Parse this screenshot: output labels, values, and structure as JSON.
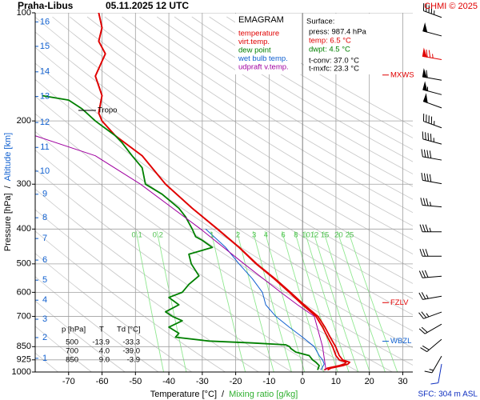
{
  "chart_data": {
    "type": "emagram",
    "title": "Praha-Libus",
    "subtitle": "05.11.2025 12 UTC",
    "credit": "CHMI © 2025",
    "xlabel": "Temperature [°C]",
    "xlabel_sep": "/",
    "xlabel2": "Mixing ratio [g/kg]",
    "ylabel": "Pressure [hPa]",
    "ylabel_sep": "/",
    "ylabel2": "Altitude [km]",
    "xlim": [
      -80,
      33
    ],
    "xticks": [
      -70,
      -60,
      -50,
      -40,
      -30,
      -20,
      -10,
      0,
      10,
      20,
      30
    ],
    "ylim": [
      1000,
      100
    ],
    "yscale": "log",
    "yticks": [
      100,
      200,
      300,
      400,
      500,
      600,
      700,
      850,
      925,
      1000
    ],
    "grid": true,
    "altitude_km": [
      1,
      2,
      3,
      4,
      5,
      6,
      7,
      8,
      9,
      10,
      11,
      12,
      13,
      14,
      15,
      16
    ],
    "altitude_pressure": [
      916,
      802,
      713,
      631,
      555,
      488,
      425,
      372,
      320,
      276,
      237,
      202,
      171,
      146,
      124,
      106
    ],
    "mixing_ratios": [
      0.1,
      0.2,
      1,
      2,
      3,
      4,
      6,
      8,
      10,
      12,
      15,
      20,
      25
    ],
    "legend_title": "EMAGRAM",
    "series": [
      {
        "name": "temperature",
        "color": "#e00000",
        "pressure": [
          987,
          975,
          960,
          950,
          940,
          925,
          900,
          850,
          800,
          750,
          700,
          650,
          600,
          550,
          500,
          450,
          400,
          350,
          300,
          250,
          220,
          200,
          190,
          170,
          150,
          130,
          120,
          110,
          100
        ],
        "values": [
          6.5,
          7.5,
          11,
          12.5,
          13,
          11,
          10,
          9,
          7.5,
          6,
          4,
          0,
          -4,
          -8.5,
          -13.9,
          -19,
          -25.5,
          -33,
          -41,
          -48,
          -56,
          -60,
          -61,
          -60,
          -62,
          -59,
          -61,
          -60,
          -61
        ]
      },
      {
        "name": "virt.temp.",
        "color": "#e00000",
        "pressure": [
          987,
          975,
          960,
          950,
          940,
          925,
          900,
          850,
          800,
          750,
          700,
          650,
          600,
          550,
          500,
          450,
          400,
          350,
          300,
          250,
          220,
          200,
          190,
          170,
          150,
          130,
          120,
          110,
          100
        ],
        "values": [
          7.5,
          8.5,
          12.1,
          13.6,
          14.1,
          12,
          11,
          9.9,
          8.3,
          6.7,
          4.6,
          0.5,
          -3.6,
          -8.2,
          -13.7,
          -18.9,
          -25.4,
          -33,
          -41,
          -48,
          -56,
          -60,
          -61,
          -60,
          -62,
          -59,
          -61,
          -60,
          -61
        ]
      },
      {
        "name": "dew point",
        "color": "#008000",
        "pressure": [
          987,
          960,
          940,
          925,
          900,
          880,
          860,
          850,
          840,
          830,
          820,
          800,
          780,
          750,
          720,
          700,
          680,
          650,
          620,
          600,
          570,
          540,
          500,
          470,
          450,
          430,
          420,
          400,
          370,
          350,
          320,
          300,
          270,
          250,
          230,
          220,
          200,
          185,
          175,
          170
        ],
        "values": [
          4.5,
          5,
          4,
          3,
          2,
          -2,
          -3.5,
          -3.9,
          -5,
          -15,
          -28,
          -38,
          -37,
          -40,
          -36,
          -39,
          -41,
          -37,
          -40,
          -36,
          -34,
          -31,
          -33.3,
          -34,
          -27,
          -30,
          -32,
          -33,
          -35,
          -37,
          -42,
          -47,
          -48,
          -51,
          -54,
          -56,
          -62,
          -66,
          -70,
          -78
        ]
      },
      {
        "name": "wet bulb temp.",
        "color": "#1060d0",
        "pressure": [
          987,
          950,
          925,
          900,
          850,
          800,
          750,
          700,
          650,
          600,
          550,
          500,
          450,
          400
        ],
        "values": [
          5.5,
          6.5,
          6,
          5,
          3.5,
          0,
          -4,
          -8,
          -11,
          -12,
          -15,
          -19,
          -23,
          -29
        ]
      },
      {
        "name": "udpraft v.temp.",
        "color": "#a000a0",
        "pressure": [
          987,
          850,
          700,
          650,
          600,
          500,
          400,
          300,
          250,
          220
        ],
        "values": [
          7,
          6,
          3.5,
          -1.5,
          -6.5,
          -17.5,
          -30.5,
          -48.5,
          -62,
          -80
        ]
      }
    ],
    "surface_title": "Surface:",
    "surface_lines": [
      {
        "text": "press: 987.4 hPa",
        "color": "#000000"
      },
      {
        "text": "temp: 6.5 °C",
        "color": "#e00000"
      },
      {
        "text": "dwpt: 4.5 °C",
        "color": "#008000"
      },
      {
        "text": "t-conv: 37.0 °C",
        "color": "#000000"
      },
      {
        "text": "t-mxfc: 23.3 °C",
        "color": "#000000"
      }
    ],
    "levels": [
      {
        "label": "MXWS",
        "pressure": 149,
        "color": "#e00000"
      },
      {
        "label": "FZLV",
        "pressure": 641,
        "color": "#e00000"
      },
      {
        "label": "WBZL",
        "pressure": 821,
        "color": "#1060d0"
      }
    ],
    "tropopause": {
      "label": "Tropo",
      "pressure": 187
    },
    "table": {
      "header": [
        "p [hPa]",
        "T",
        "Td [°C]"
      ],
      "rows": [
        [
          "500",
          "-13.9",
          "-33.3"
        ],
        [
          "700",
          "4.0",
          "-39.0"
        ],
        [
          "850",
          "9.0",
          "-3.9"
        ]
      ]
    },
    "winds": {
      "pressure": [
        103,
        116,
        135,
        154,
        169,
        184,
        209,
        232,
        257,
        299,
        347,
        407,
        476,
        541,
        615,
        681,
        736,
        811,
        903,
        950
      ],
      "direction": [
        290,
        285,
        280,
        280,
        285,
        290,
        290,
        285,
        280,
        280,
        275,
        270,
        270,
        265,
        260,
        250,
        240,
        230,
        210,
        190
      ],
      "speed": [
        45,
        50,
        75,
        60,
        55,
        50,
        45,
        45,
        40,
        40,
        35,
        35,
        30,
        30,
        25,
        25,
        20,
        20,
        15,
        10
      ],
      "color": [
        "#000000",
        "#000000",
        "#e00000",
        "#000000",
        "#000000",
        "#000000",
        "#000000",
        "#000000",
        "#000000",
        "#000000",
        "#000000",
        "#000000",
        "#000000",
        "#000000",
        "#000000",
        "#000000",
        "#000000",
        "#000000",
        "#000000",
        "#1030c0"
      ]
    },
    "sfc_label": "SFC: 304 m ASL"
  }
}
